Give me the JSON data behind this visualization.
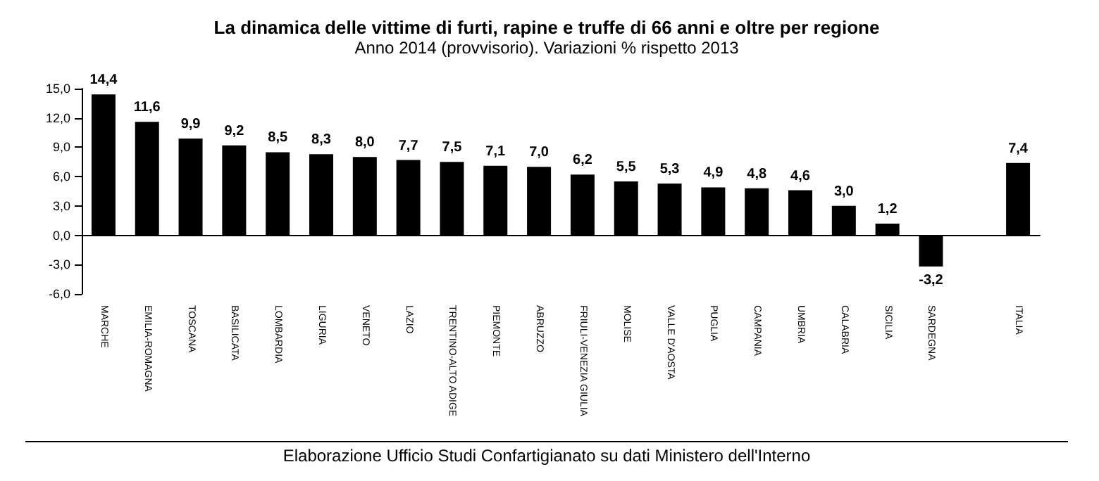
{
  "chart_data": {
    "type": "bar",
    "title": "La dinamica delle vittime di furti, rapine e truffe di 66 anni e oltre per regione",
    "subtitle": "Anno 2014 (provvisorio). Variazioni % rispetto 2013",
    "categories": [
      "MARCHE",
      "EMILIA-ROMAGNA",
      "TOSCANA",
      "BASILICATA",
      "LOMBARDIA",
      "LIGURIA",
      "VENETO",
      "LAZIO",
      "TRENTINO-ALTO ADIGE",
      "PIEMONTE",
      "ABRUZZO",
      "FRIULI-VENEZIA GIULIA",
      "MOLISE",
      "VALLE D'AOSTA",
      "PUGLIA",
      "CAMPANIA",
      "UMBRIA",
      "CALABRIA",
      "SICILIA",
      "SARDEGNA",
      null,
      "ITALIA"
    ],
    "values": [
      14.4,
      11.6,
      9.9,
      9.2,
      8.5,
      8.3,
      8.0,
      7.7,
      7.5,
      7.1,
      7.0,
      6.2,
      5.5,
      5.3,
      4.9,
      4.8,
      4.6,
      3.0,
      1.2,
      -3.2,
      null,
      7.4
    ],
    "value_labels": [
      "14,4",
      "11,6",
      "9,9",
      "9,2",
      "8,5",
      "8,3",
      "8,0",
      "7,7",
      "7,5",
      "7,1",
      "7,0",
      "6,2",
      "5,5",
      "5,3",
      "4,9",
      "4,8",
      "4,6",
      "3,0",
      "1,2",
      "-3,2",
      null,
      "7,4"
    ],
    "color": "#000000",
    "ylim": [
      -6,
      15
    ],
    "yticks": [
      {
        "value": -6,
        "label": "-6,0"
      },
      {
        "value": -3,
        "label": "-3,0"
      },
      {
        "value": 0,
        "label": "0,0"
      },
      {
        "value": 3,
        "label": "3,0"
      },
      {
        "value": 6,
        "label": "6,0"
      },
      {
        "value": 9,
        "label": "9,0"
      },
      {
        "value": 12,
        "label": "12,0"
      },
      {
        "value": 15,
        "label": "15,0"
      }
    ],
    "annotations": [
      "Elaborazione Ufficio Studi Confartigianato su dati Ministero dell'Interno"
    ]
  }
}
